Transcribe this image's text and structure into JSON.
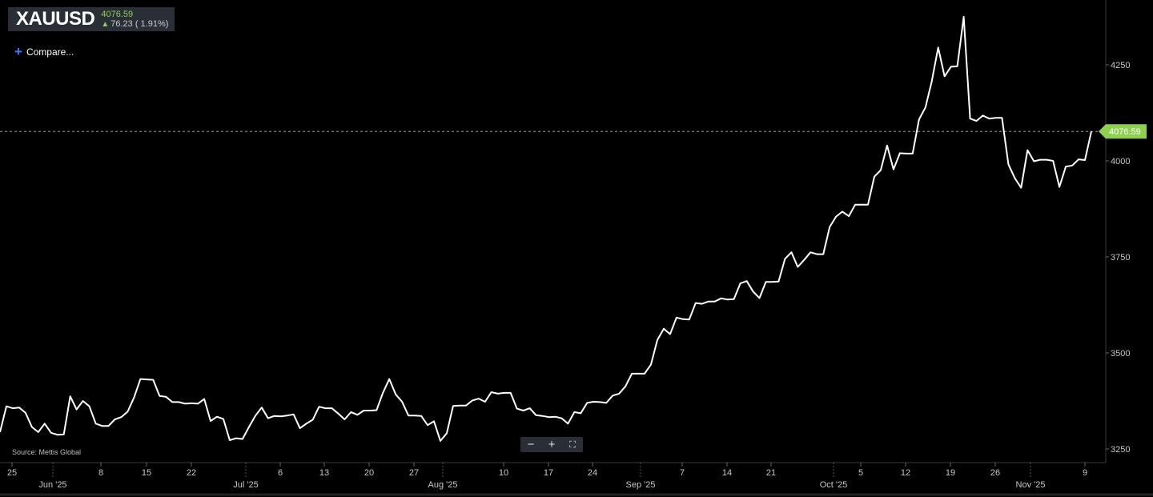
{
  "header": {
    "symbol": "XAUUSD",
    "last_price": "4076.59",
    "change": "76.23 ( 1.91%)",
    "change_icon": "arrow-up-icon",
    "up_color": "#8fd14f"
  },
  "compare_label": "Compare...",
  "source_label": "Source: Mettis Global",
  "zoom": {
    "minus": "−",
    "plus": "+",
    "fit": "⛶"
  },
  "colors": {
    "background": "#000000",
    "line": "#ffffff",
    "badge": "#8fd14f",
    "axis_text": "#c8c8c8"
  },
  "chart_data": {
    "type": "line",
    "title": "",
    "xlabel": "",
    "ylabel": "",
    "ylim": [
      3225,
      4375
    ],
    "y_ticks": [
      3250,
      3500,
      3750,
      4000,
      4250
    ],
    "last_value_label": "4076.59",
    "last_value": 4076.59,
    "x_tick_labels": [
      "25",
      "8",
      "15",
      "22",
      "6",
      "13",
      "20",
      "27",
      "10",
      "17",
      "24",
      "7",
      "14",
      "21",
      "5",
      "12",
      "19",
      "26",
      "9"
    ],
    "x_month_labels": [
      "Jun '25",
      "Jul '25",
      "Aug '25",
      "Sep '25",
      "Oct '25",
      "Nov '25"
    ],
    "grid": false,
    "series": [
      {
        "values": [
          3294,
          3361,
          3356,
          3358,
          3344,
          3307,
          3294,
          3316,
          3292,
          3287,
          3288,
          3387,
          3353,
          3375,
          3361,
          3316,
          3310,
          3310,
          3327,
          3333,
          3347,
          3384,
          3432,
          3431,
          3430,
          3388,
          3386,
          3372,
          3372,
          3368,
          3369,
          3368,
          3380,
          3323,
          3334,
          3328,
          3273,
          3278,
          3276,
          3307,
          3336,
          3358,
          3330,
          3336,
          3335,
          3337,
          3340,
          3304,
          3316,
          3326,
          3360,
          3356,
          3356,
          3342,
          3327,
          3346,
          3339,
          3350,
          3350,
          3351,
          3396,
          3432,
          3392,
          3373,
          3337,
          3337,
          3336,
          3312,
          3322,
          3271,
          3291,
          3362,
          3363,
          3363,
          3376,
          3381,
          3373,
          3398,
          3394,
          3396,
          3396,
          3355,
          3350,
          3356,
          3338,
          3336,
          3333,
          3334,
          3330,
          3316,
          3346,
          3343,
          3370,
          3373,
          3372,
          3370,
          3389,
          3394,
          3413,
          3446,
          3446,
          3446,
          3470,
          3534,
          3563,
          3549,
          3592,
          3588,
          3587,
          3630,
          3628,
          3634,
          3634,
          3642,
          3639,
          3640,
          3681,
          3687,
          3660,
          3643,
          3685,
          3685,
          3686,
          3745,
          3762,
          3724,
          3742,
          3762,
          3757,
          3757,
          3828,
          3855,
          3868,
          3856,
          3886,
          3886,
          3886,
          3959,
          3976,
          4040,
          3978,
          4020,
          4019,
          4019,
          4108,
          4139,
          4207,
          4295,
          4220,
          4245,
          4246,
          4375,
          4110,
          4104,
          4118,
          4110,
          4112,
          4112,
          3991,
          3955,
          3930,
          4028,
          3999,
          4003,
          4003,
          4000,
          3932,
          3985,
          3988,
          4004,
          4002,
          4076.59
        ]
      }
    ]
  }
}
